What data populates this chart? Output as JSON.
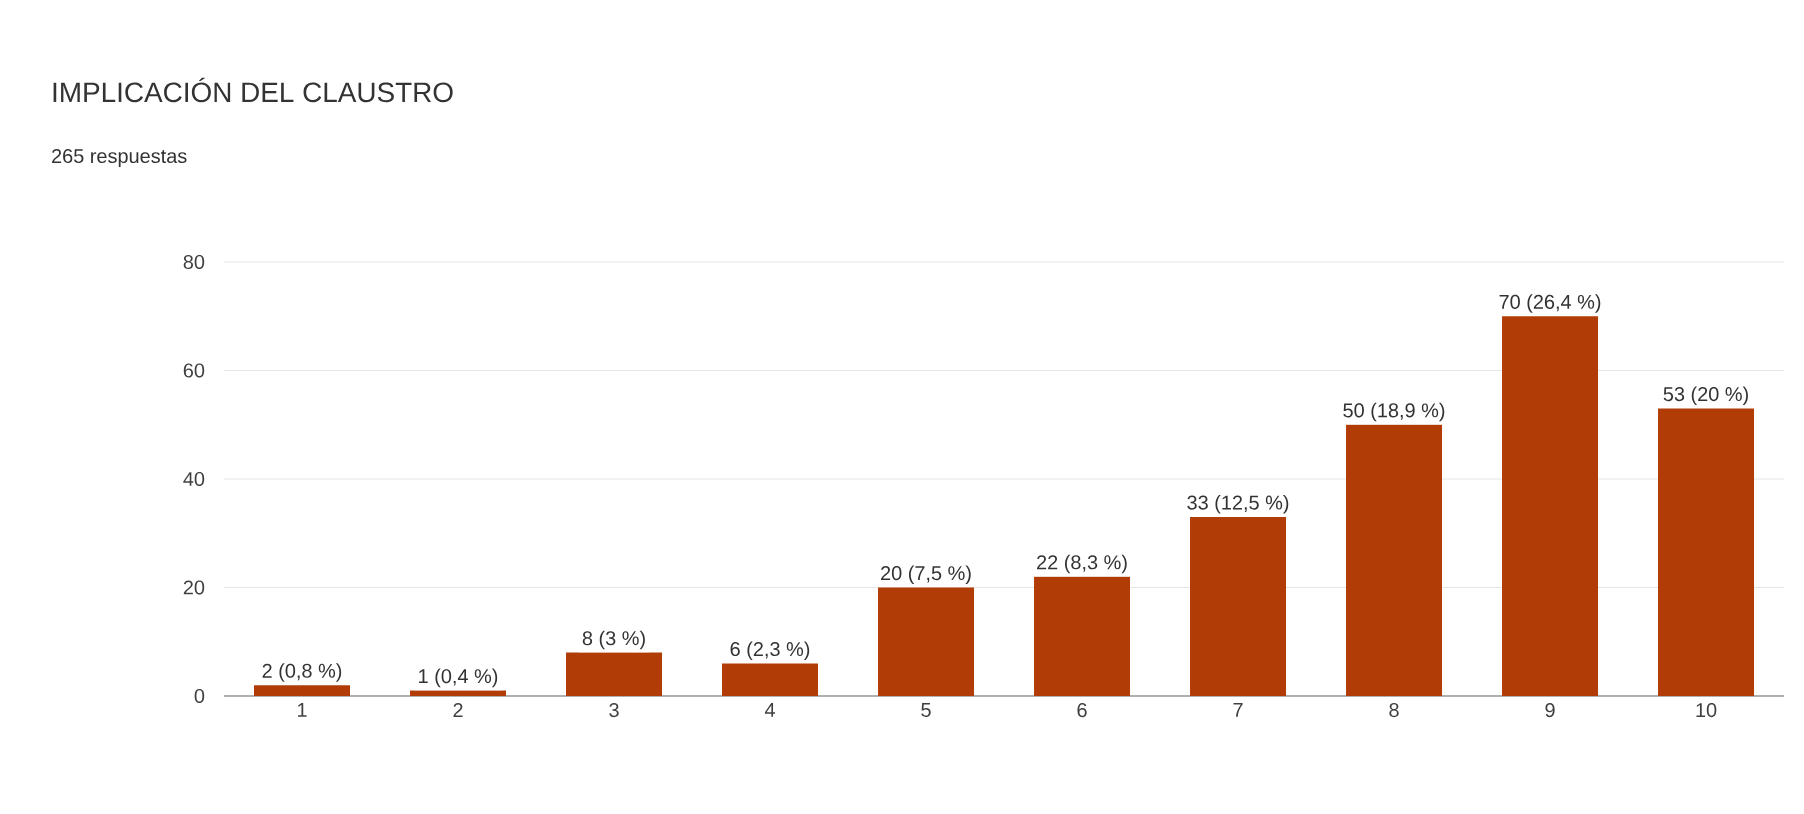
{
  "chart_data": {
    "type": "bar",
    "title": "IMPLICACIÓN DEL CLAUSTRO",
    "subtitle": "265 respuestas",
    "categories": [
      "1",
      "2",
      "3",
      "4",
      "5",
      "6",
      "7",
      "8",
      "9",
      "10"
    ],
    "values": [
      2,
      1,
      8,
      6,
      20,
      22,
      33,
      50,
      70,
      53
    ],
    "value_labels": [
      "2 (0,8 %)",
      "1 (0,4 %)",
      "8 (3 %)",
      "6 (2,3 %)",
      "20 (7,5 %)",
      "22 (8,3 %)",
      "33 (12,5 %)",
      "50 (18,9 %)",
      "70 (26,4 %)",
      "53 (20 %)"
    ],
    "color": "#b23c06",
    "ylim": [
      0,
      80
    ],
    "yticks": [
      0,
      20,
      40,
      60,
      80
    ],
    "grid": "y"
  }
}
